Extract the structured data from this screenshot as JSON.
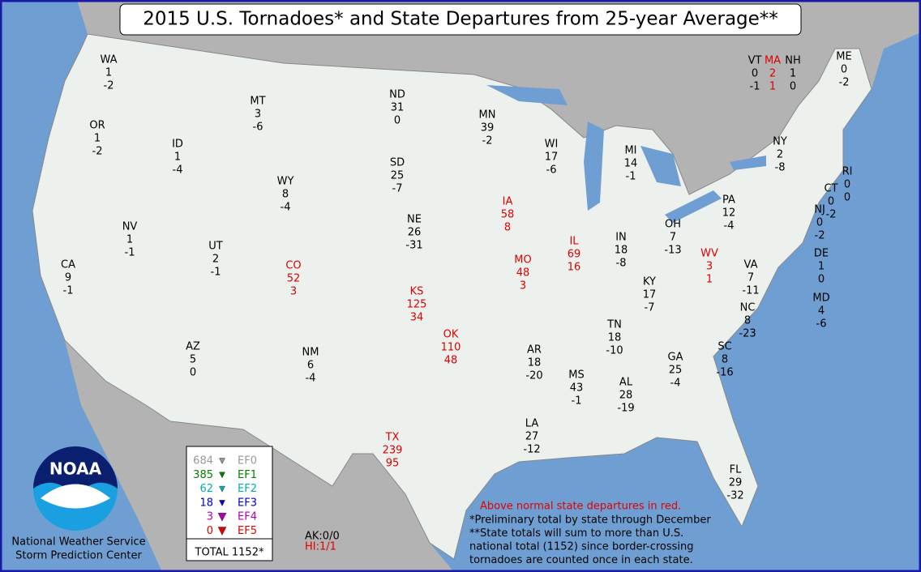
{
  "title": "2015 U.S. Tornadoes* and State Departures from 25-year Average**",
  "states": [
    {
      "abbr": "WA",
      "count": 1,
      "departure": -2,
      "color": "#000000"
    },
    {
      "abbr": "OR",
      "count": 1,
      "departure": -2,
      "color": "#000000"
    },
    {
      "abbr": "ID",
      "count": 1,
      "departure": -4,
      "color": "#000000"
    },
    {
      "abbr": "MT",
      "count": 3,
      "departure": -6,
      "color": "#000000"
    },
    {
      "abbr": "ND",
      "count": 31,
      "departure": 0,
      "color": "#000000"
    },
    {
      "abbr": "MN",
      "count": 39,
      "departure": -2,
      "color": "#000000"
    },
    {
      "abbr": "SD",
      "count": 25,
      "departure": -7,
      "color": "#000000"
    },
    {
      "abbr": "WY",
      "count": 8,
      "departure": -4,
      "color": "#000000"
    },
    {
      "abbr": "WI",
      "count": 17,
      "departure": -6,
      "color": "#000000"
    },
    {
      "abbr": "MI",
      "count": 14,
      "departure": -1,
      "color": "#000000"
    },
    {
      "abbr": "NY",
      "count": 2,
      "departure": -8,
      "color": "#000000"
    },
    {
      "abbr": "VT",
      "count": 0,
      "departure": -1,
      "color": "#000000"
    },
    {
      "abbr": "MA",
      "count": 2,
      "departure": 1,
      "color": "#e00000"
    },
    {
      "abbr": "NH",
      "count": 1,
      "departure": 0,
      "color": "#000000"
    },
    {
      "abbr": "ME",
      "count": 0,
      "departure": -2,
      "color": "#000000"
    },
    {
      "abbr": "RI",
      "count": 0,
      "departure": 0,
      "color": "#000000"
    },
    {
      "abbr": "CT",
      "count": 0,
      "departure": -2,
      "color": "#000000"
    },
    {
      "abbr": "NJ",
      "count": 0,
      "departure": -2,
      "color": "#000000"
    },
    {
      "abbr": "DE",
      "count": 1,
      "departure": 0,
      "color": "#000000"
    },
    {
      "abbr": "MD",
      "count": 4,
      "departure": -6,
      "color": "#000000"
    },
    {
      "abbr": "PA",
      "count": 12,
      "departure": -4,
      "color": "#000000"
    },
    {
      "abbr": "OH",
      "count": 7,
      "departure": -13,
      "color": "#000000"
    },
    {
      "abbr": "WV",
      "count": 3,
      "departure": 1,
      "color": "#e00000"
    },
    {
      "abbr": "VA",
      "count": 7,
      "departure": -11,
      "color": "#000000"
    },
    {
      "abbr": "NC",
      "count": 8,
      "departure": -23,
      "color": "#000000"
    },
    {
      "abbr": "SC",
      "count": 8,
      "departure": -16,
      "color": "#000000"
    },
    {
      "abbr": "GA",
      "count": 25,
      "departure": -4,
      "color": "#000000"
    },
    {
      "abbr": "FL",
      "count": 29,
      "departure": -32,
      "color": "#000000"
    },
    {
      "abbr": "AL",
      "count": 28,
      "departure": -19,
      "color": "#000000"
    },
    {
      "abbr": "MS",
      "count": 43,
      "departure": -1,
      "color": "#000000"
    },
    {
      "abbr": "TN",
      "count": 18,
      "departure": -10,
      "color": "#000000"
    },
    {
      "abbr": "KY",
      "count": 17,
      "departure": -7,
      "color": "#000000"
    },
    {
      "abbr": "IN",
      "count": 18,
      "departure": -8,
      "color": "#000000"
    },
    {
      "abbr": "IL",
      "count": 69,
      "departure": 16,
      "color": "#e00000"
    },
    {
      "abbr": "IA",
      "count": 58,
      "departure": 8,
      "color": "#e00000"
    },
    {
      "abbr": "NE",
      "count": 26,
      "departure": -31,
      "color": "#000000"
    },
    {
      "abbr": "CO",
      "count": 52,
      "departure": 3,
      "color": "#e00000"
    },
    {
      "abbr": "UT",
      "count": 2,
      "departure": -1,
      "color": "#000000"
    },
    {
      "abbr": "NV",
      "count": 1,
      "departure": -1,
      "color": "#000000"
    },
    {
      "abbr": "CA",
      "count": 9,
      "departure": -1,
      "color": "#000000"
    },
    {
      "abbr": "AZ",
      "count": 5,
      "departure": 0,
      "color": "#000000"
    },
    {
      "abbr": "NM",
      "count": 6,
      "departure": -4,
      "color": "#000000"
    },
    {
      "abbr": "KS",
      "count": 125,
      "departure": 34,
      "color": "#e00000"
    },
    {
      "abbr": "MO",
      "count": 48,
      "departure": 3,
      "color": "#e00000"
    },
    {
      "abbr": "OK",
      "count": 110,
      "departure": 48,
      "color": "#e00000"
    },
    {
      "abbr": "AR",
      "count": 18,
      "departure": -20,
      "color": "#000000"
    },
    {
      "abbr": "LA",
      "count": 27,
      "departure": -12,
      "color": "#000000"
    },
    {
      "abbr": "TX",
      "count": 239,
      "departure": 95,
      "color": "#e00000"
    }
  ],
  "legend": {
    "rows": [
      {
        "count": 684,
        "label": "EF0",
        "color": "#999999"
      },
      {
        "count": 385,
        "label": "EF1",
        "color": "#008000"
      },
      {
        "count": 62,
        "label": "EF2",
        "color": "#00b0b0"
      },
      {
        "count": 18,
        "label": "EF3",
        "color": "#0000cc"
      },
      {
        "count": 3,
        "label": "EF4",
        "color": "#b000b0"
      },
      {
        "count": 0,
        "label": "EF5",
        "color": "#e00000"
      }
    ],
    "total": "TOTAL 1152*"
  },
  "alaska": "AK:0/0",
  "hawaii": "HI:1/1",
  "notes": {
    "above": "Above normal state departures in red.",
    "lines": [
      "*Preliminary total by state through December",
      "**State totals will sum to more than U.S.",
      "national total (1152) since border-crossing",
      "tornadoes are counted once in each state."
    ]
  },
  "logo": {
    "text": "NOAA",
    "org": [
      "National Weather Service",
      "Storm Prediction Center"
    ]
  }
}
